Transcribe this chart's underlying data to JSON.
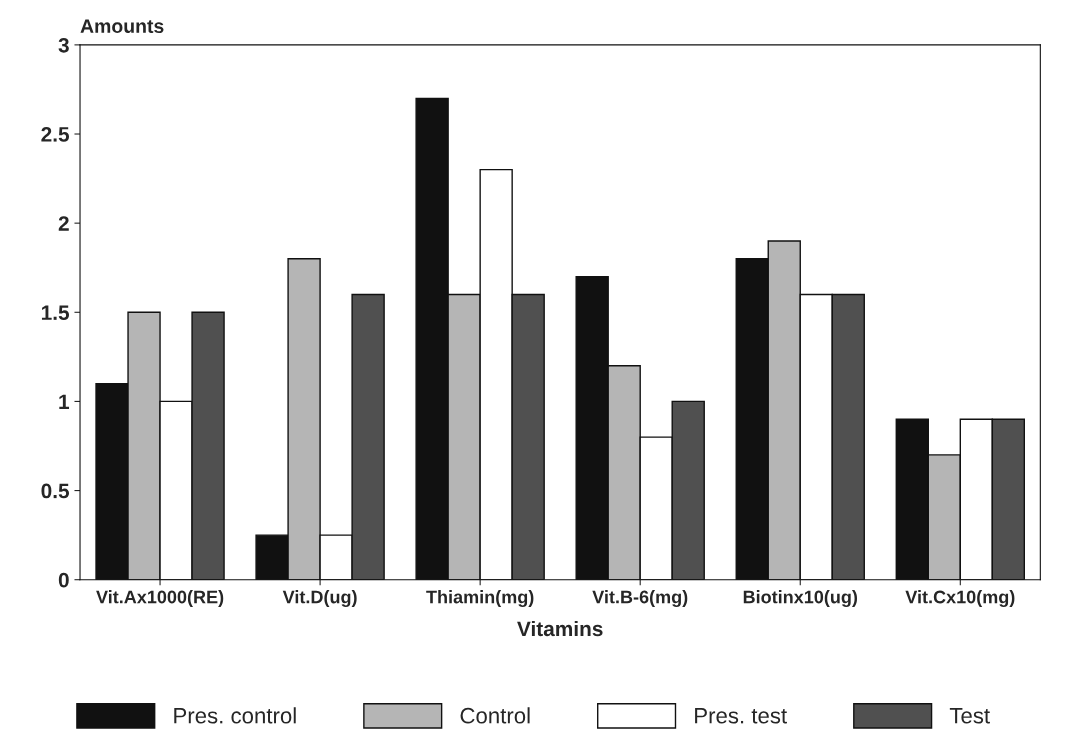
{
  "chart_data": {
    "type": "bar",
    "ylabel": "Amounts",
    "xlabel": "Vitamins",
    "categories": [
      "Vit.Ax1000(RE)",
      "Vit.D(ug)",
      "Thiamin(mg)",
      "Vit.B-6(mg)",
      "Biotinx10(ug)",
      "Vit.Cx10(mg)"
    ],
    "series": [
      {
        "name": "Pres. control",
        "color": "#111111",
        "values": [
          1.1,
          0.25,
          2.7,
          1.7,
          1.8,
          0.9
        ]
      },
      {
        "name": "Control",
        "color": "#b5b5b5",
        "values": [
          1.5,
          1.8,
          1.6,
          1.2,
          1.9,
          0.7
        ]
      },
      {
        "name": "Pres. test",
        "color": "#ffffff",
        "values": [
          1.0,
          0.25,
          2.3,
          0.8,
          1.6,
          0.9
        ]
      },
      {
        "name": "Test",
        "color": "#505050",
        "values": [
          1.5,
          1.6,
          1.6,
          1.0,
          1.6,
          0.9
        ]
      }
    ],
    "ylim": [
      0,
      3
    ],
    "yticks": [
      0,
      0.5,
      1,
      1.5,
      2,
      2.5,
      3
    ],
    "grid": false,
    "legend": "bottom"
  }
}
